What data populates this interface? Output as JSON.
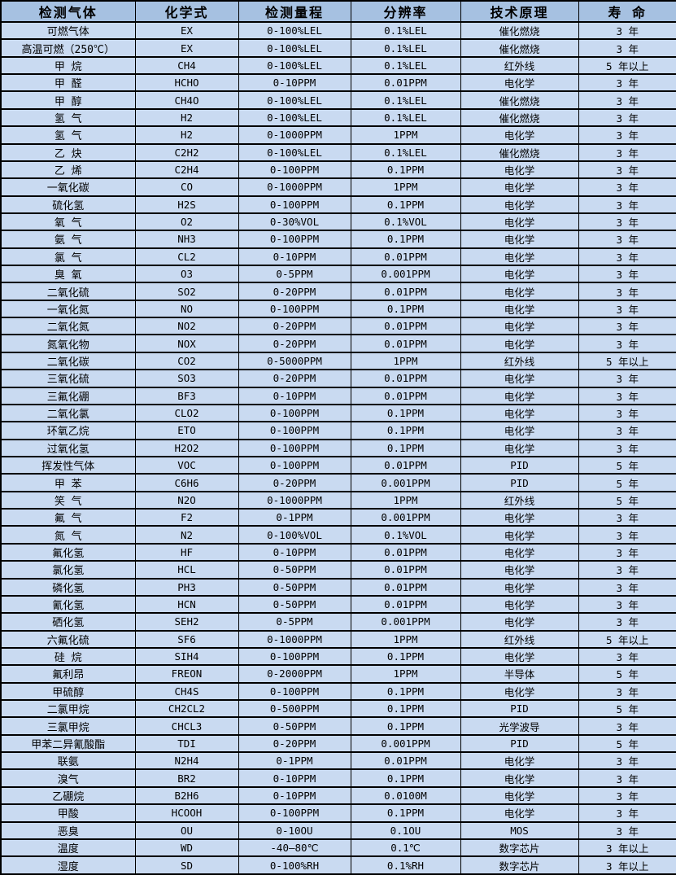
{
  "table": {
    "title": "gas-detection-specifications",
    "colors": {
      "header_bg": "#a6c1e1",
      "row_bg": "#c9daf1",
      "border": "#000000",
      "text": "#000000"
    },
    "columns": [
      "检测气体",
      "化学式",
      "检测量程",
      "分辨率",
      "技术原理",
      "寿 命"
    ],
    "rows": [
      [
        "可燃气体",
        "EX",
        "0-100%LEL",
        "0.1%LEL",
        "催化燃烧",
        "3 年"
      ],
      [
        "高温可燃（250℃）",
        "EX",
        "0-100%LEL",
        "0.1%LEL",
        "催化燃烧",
        "3 年"
      ],
      [
        "甲 烷",
        "CH4",
        "0-100%LEL",
        "0.1%LEL",
        "红外线",
        "5 年以上"
      ],
      [
        "甲 醛",
        "HCHO",
        "0-10PPM",
        "0.01PPM",
        "电化学",
        "3 年"
      ],
      [
        "甲 醇",
        "CH4O",
        "0-100%LEL",
        "0.1%LEL",
        "催化燃烧",
        "3 年"
      ],
      [
        "氢 气",
        "H2",
        "0-100%LEL",
        "0.1%LEL",
        "催化燃烧",
        "3 年"
      ],
      [
        "氢 气",
        "H2",
        "0-1000PPM",
        "1PPM",
        "电化学",
        "3 年"
      ],
      [
        "乙 炔",
        "C2H2",
        "0-100%LEL",
        "0.1%LEL",
        "催化燃烧",
        "3 年"
      ],
      [
        "乙 烯",
        "C2H4",
        "0-100PPM",
        "0.1PPM",
        "电化学",
        "3 年"
      ],
      [
        "一氧化碳",
        "CO",
        "0-1000PPM",
        "1PPM",
        "电化学",
        "3 年"
      ],
      [
        "硫化氢",
        "H2S",
        "0-100PPM",
        "0.1PPM",
        "电化学",
        "3 年"
      ],
      [
        "氧 气",
        "O2",
        "0-30%VOL",
        "0.1%VOL",
        "电化学",
        "3 年"
      ],
      [
        "氨 气",
        "NH3",
        "0-100PPM",
        "0.1PPM",
        "电化学",
        "3 年"
      ],
      [
        "氯 气",
        "CL2",
        "0-10PPM",
        "0.01PPM",
        "电化学",
        "3 年"
      ],
      [
        "臭 氧",
        "O3",
        "0-5PPM",
        "0.001PPM",
        "电化学",
        "3 年"
      ],
      [
        "二氧化硫",
        "SO2",
        "0-20PPM",
        "0.01PPM",
        "电化学",
        "3 年"
      ],
      [
        "一氧化氮",
        "NO",
        "0-100PPM",
        "0.1PPM",
        "电化学",
        "3 年"
      ],
      [
        "二氧化氮",
        "NO2",
        "0-20PPM",
        "0.01PPM",
        "电化学",
        "3 年"
      ],
      [
        "氮氧化物",
        "NOX",
        "0-20PPM",
        "0.01PPM",
        "电化学",
        "3 年"
      ],
      [
        "二氧化碳",
        "CO2",
        "0-5000PPM",
        "1PPM",
        "红外线",
        "5 年以上"
      ],
      [
        "三氧化硫",
        "SO3",
        "0-20PPM",
        "0.01PPM",
        "电化学",
        "3 年"
      ],
      [
        "三氟化硼",
        "BF3",
        "0-10PPM",
        "0.01PPM",
        "电化学",
        "3 年"
      ],
      [
        "二氧化氯",
        "CLO2",
        "0-100PPM",
        "0.1PPM",
        "电化学",
        "3 年"
      ],
      [
        "环氧乙烷",
        "ETO",
        "0-100PPM",
        "0.1PPM",
        "电化学",
        "3 年"
      ],
      [
        "过氧化氢",
        "H2O2",
        "0-100PPM",
        "0.1PPM",
        "电化学",
        "3 年"
      ],
      [
        "挥发性气体",
        "VOC",
        "0-100PPM",
        "0.01PPM",
        "PID",
        "5 年"
      ],
      [
        "甲 苯",
        "C6H6",
        "0-20PPM",
        "0.001PPM",
        "PID",
        "5 年"
      ],
      [
        "笑 气",
        "N2O",
        "0-1000PPM",
        "1PPM",
        "红外线",
        "5 年"
      ],
      [
        "氟 气",
        "F2",
        "0-1PPM",
        "0.001PPM",
        "电化学",
        "3 年"
      ],
      [
        "氮 气",
        "N2",
        "0-100%VOL",
        "0.1%VOL",
        "电化学",
        "3 年"
      ],
      [
        "氟化氢",
        "HF",
        "0-10PPM",
        "0.01PPM",
        "电化学",
        "3 年"
      ],
      [
        "氯化氢",
        "HCL",
        "0-50PPM",
        "0.01PPM",
        "电化学",
        "3 年"
      ],
      [
        "磷化氢",
        "PH3",
        "0-50PPM",
        "0.01PPM",
        "电化学",
        "3 年"
      ],
      [
        "氰化氢",
        "HCN",
        "0-50PPM",
        "0.01PPM",
        "电化学",
        "3 年"
      ],
      [
        "硒化氢",
        "SEH2",
        "0-5PPM",
        "0.001PPM",
        "电化学",
        "3 年"
      ],
      [
        "六氟化硫",
        "SF6",
        "0-1000PPM",
        "1PPM",
        "红外线",
        "5 年以上"
      ],
      [
        "硅 烷",
        "SIH4",
        "0-100PPM",
        "0.1PPM",
        "电化学",
        "3 年"
      ],
      [
        "氟利昂",
        "FREON",
        "0-2000PPM",
        "1PPM",
        "半导体",
        "5 年"
      ],
      [
        "甲硫醇",
        "CH4S",
        "0-100PPM",
        "0.1PPM",
        "电化学",
        "3 年"
      ],
      [
        "二氯甲烷",
        "CH2CL2",
        "0-500PPM",
        "0.1PPM",
        "PID",
        "5 年"
      ],
      [
        "三氯甲烷",
        "CHCL3",
        "0-50PPM",
        "0.1PPM",
        "光学波导",
        "3 年"
      ],
      [
        "甲苯二异氰酸酯",
        "TDI",
        "0-20PPM",
        "0.001PPM",
        "PID",
        "5 年"
      ],
      [
        "联氨",
        "N2H4",
        "0-1PPM",
        "0.01PPM",
        "电化学",
        "3 年"
      ],
      [
        "溴气",
        "BR2",
        "0-10PPM",
        "0.1PPM",
        "电化学",
        "3 年"
      ],
      [
        "乙硼烷",
        "B2H6",
        "0-10PPM",
        "0.0100M",
        "电化学",
        "3 年"
      ],
      [
        "甲酸",
        "HCOOH",
        "0-100PPM",
        "0.1PPM",
        "电化学",
        "3 年"
      ],
      [
        "恶臭",
        "OU",
        "0-10OU",
        "0.1OU",
        "MOS",
        "3 年"
      ],
      [
        "温度",
        "WD",
        "-40—80℃",
        "0.1℃",
        "数字芯片",
        "3 年以上"
      ],
      [
        "湿度",
        "SD",
        "0-100%RH",
        "0.1%RH",
        "数字芯片",
        "3 年以上"
      ]
    ]
  }
}
